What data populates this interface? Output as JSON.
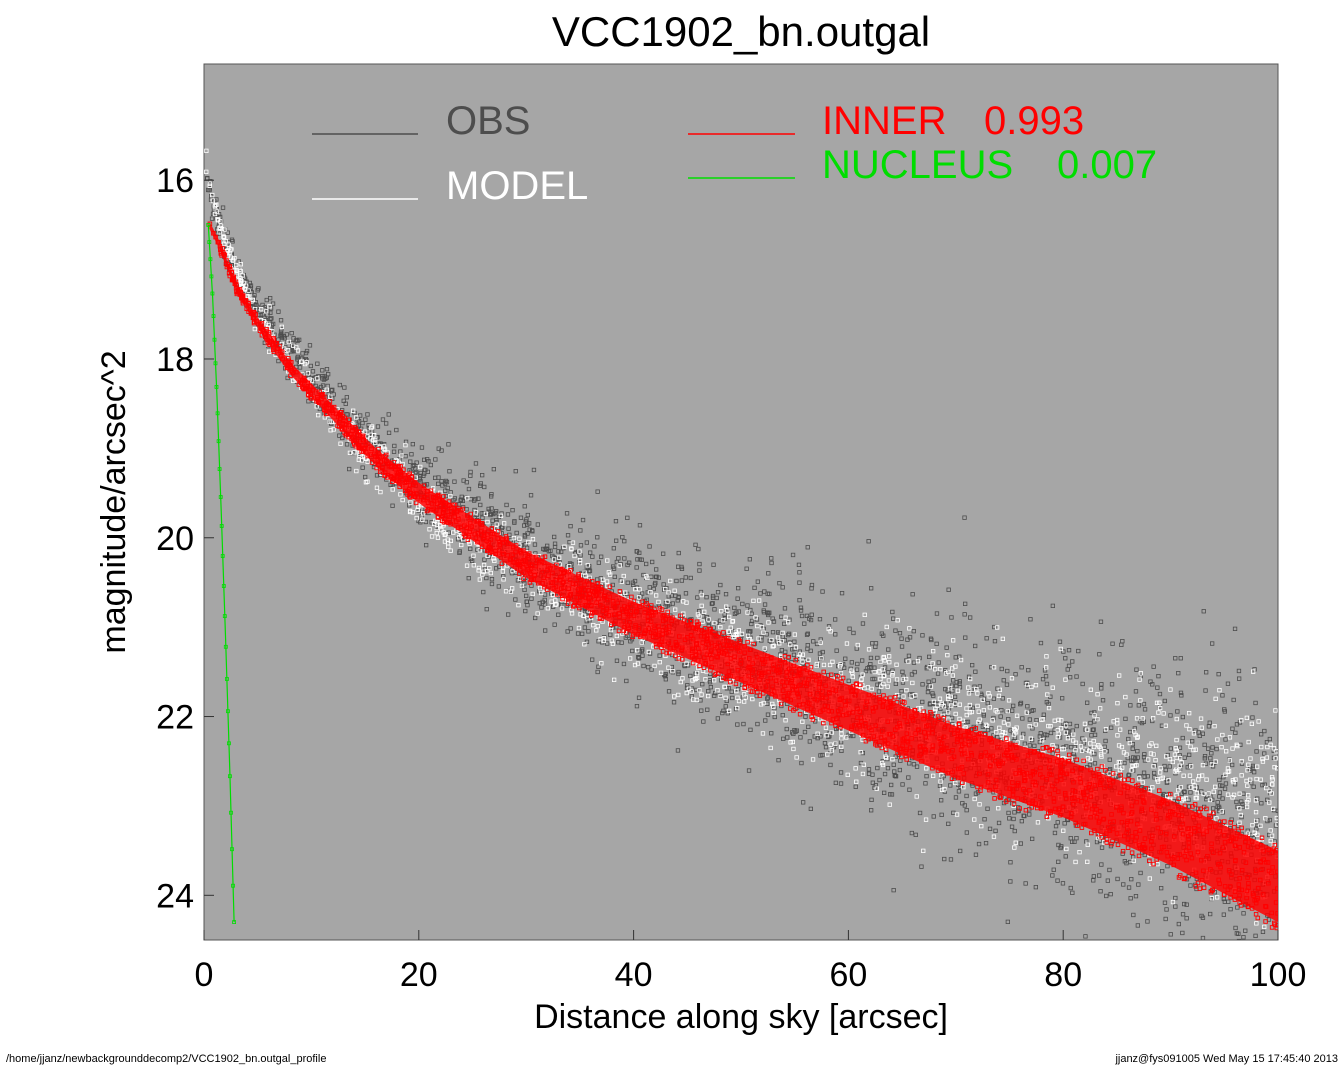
{
  "chart_data": {
    "type": "scatter",
    "title": "VCC1902_bn.outgal",
    "xlabel": "Distance along sky [arcsec]",
    "ylabel": "magnitude/arcsec^2",
    "xlim": [
      0,
      100
    ],
    "ylim": [
      24.5,
      14.7
    ],
    "y_inverted": true,
    "x_ticks": [
      0,
      20,
      40,
      60,
      80,
      100
    ],
    "y_ticks": [
      16,
      18,
      20,
      22,
      24
    ],
    "plot_background": "#a6a6a6",
    "legend": [
      {
        "label": "OBS",
        "value": "",
        "color": "#4d4d4d"
      },
      {
        "label": "MODEL",
        "value": "",
        "color": "#ffffff"
      },
      {
        "label": "INNER",
        "value": "0.993",
        "color": "#ff0000"
      },
      {
        "label": "NUCLEUS",
        "value": "0.007",
        "color": "#00dd00"
      }
    ],
    "series": [
      {
        "name": "OBS",
        "color": "#4d4d4d",
        "x": [
          0.2,
          0.5,
          1,
          2,
          3,
          5,
          8,
          12,
          16,
          20,
          25,
          30,
          35,
          40,
          50,
          60,
          70,
          80,
          90,
          100
        ],
        "y": [
          15.9,
          16.1,
          16.4,
          16.7,
          17.0,
          17.4,
          17.9,
          18.5,
          19.0,
          19.4,
          19.8,
          20.2,
          20.5,
          20.8,
          21.3,
          21.8,
          22.2,
          22.6,
          23.0,
          23.4
        ]
      },
      {
        "name": "MODEL",
        "color": "#ffffff",
        "x": [
          0.2,
          0.5,
          1,
          2,
          3,
          5,
          8,
          12,
          16,
          20,
          25,
          30,
          35,
          40,
          50,
          60,
          70,
          80,
          90,
          100
        ],
        "y": [
          15.8,
          16.0,
          16.3,
          16.7,
          17.0,
          17.5,
          18.0,
          18.6,
          19.1,
          19.6,
          20.0,
          20.3,
          20.6,
          20.9,
          21.4,
          21.8,
          22.1,
          22.5,
          22.8,
          23.1
        ]
      },
      {
        "name": "INNER",
        "color": "#ff0000",
        "x": [
          0.5,
          1,
          2,
          3,
          5,
          8,
          12,
          16,
          20,
          25,
          30,
          35,
          40,
          50,
          60,
          70,
          80,
          90,
          100
        ],
        "y": [
          16.5,
          16.6,
          16.9,
          17.2,
          17.6,
          18.1,
          18.6,
          19.1,
          19.5,
          19.9,
          20.3,
          20.6,
          20.9,
          21.4,
          21.9,
          22.4,
          22.8,
          23.3,
          23.9
        ]
      },
      {
        "name": "NUCLEUS",
        "color": "#00dd00",
        "x": [
          0.4,
          0.8,
          1.2,
          1.6,
          2.0,
          2.4,
          2.8
        ],
        "y": [
          16.5,
          17.3,
          18.4,
          19.7,
          21.1,
          22.6,
          24.3
        ]
      }
    ]
  },
  "footer": {
    "left": "/home/jjanz/newbackgrounddecomp2/VCC1902_bn.outgal_profile",
    "right": "jjanz@fys091005  Wed May 15 17:45:40 2013"
  }
}
